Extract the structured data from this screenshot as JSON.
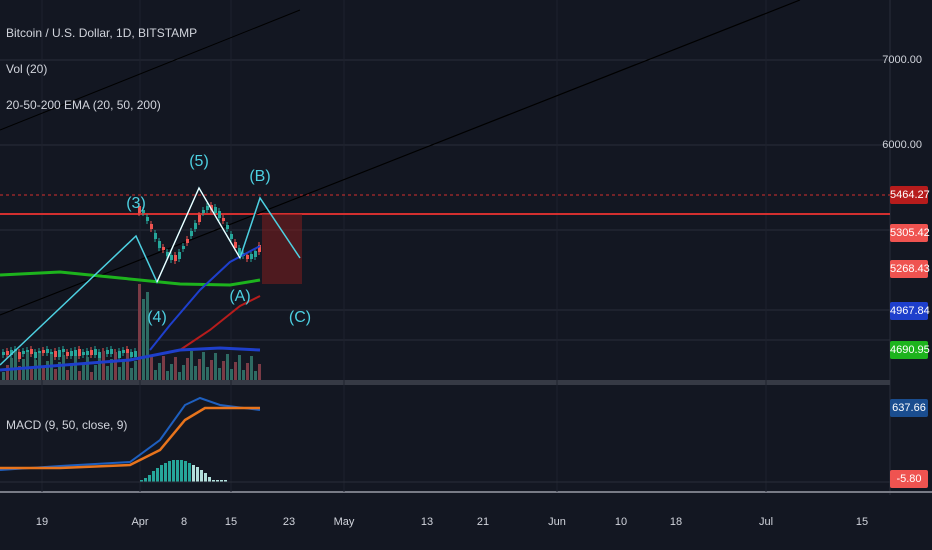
{
  "chart_data": {
    "type": "candlestick",
    "title": "Bitcoin / U.S. Dollar, 1D, BITSTAMP",
    "indicators": [
      "Vol (20)",
      "20-50-200 EMA (20, 50, 200)",
      "MACD (9, 50, close, 9)"
    ],
    "price_axis": {
      "ticks": [
        "7000.00",
        "6000.00"
      ]
    },
    "price_tags": [
      {
        "label": "5464.27",
        "color": "#b71c1c"
      },
      {
        "label": "5305.42",
        "color": "#ef5350"
      },
      {
        "label": "5268.43",
        "color": "#ef5350"
      },
      {
        "label": "4967.84",
        "color": "#1e3fcc"
      },
      {
        "label": "4690.95",
        "color": "#1db31d"
      }
    ],
    "macd_tags": [
      {
        "label": "637.66",
        "color": "#1a4d8f"
      },
      {
        "label": "-5.80",
        "color": "#ef5350"
      }
    ],
    "x_axis": {
      "ticks": [
        "19",
        "Apr",
        "8",
        "15",
        "23",
        "May",
        "13",
        "21",
        "Jun",
        "10",
        "18",
        "Jul",
        "15"
      ]
    },
    "wave_labels": [
      "(3)",
      "(4)",
      "(5)",
      "(A)",
      "(B)",
      "(C)"
    ],
    "colors": {
      "ema20": "#1e3fcc",
      "ema50": "#b71c1c",
      "ema200": "#1db31d",
      "macd": "#1e5fbf",
      "signal": "#e8741c",
      "wave": "#4dd0e1"
    }
  }
}
